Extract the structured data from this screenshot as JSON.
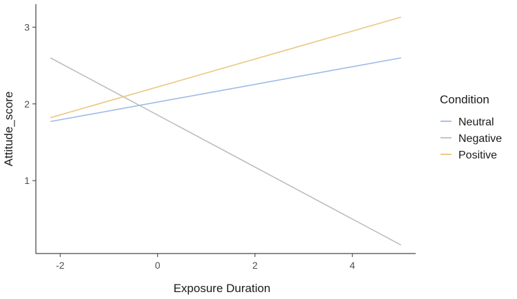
{
  "chart_data": {
    "type": "line",
    "xlabel": "Exposure Duration",
    "ylabel": "Attitude_score",
    "xlim": [
      -2.5,
      5.3
    ],
    "ylim": [
      0.05,
      3.3
    ],
    "x_ticks": [
      -2,
      0,
      2,
      4
    ],
    "y_ticks": [
      1,
      2,
      3
    ],
    "grid": false,
    "legend": {
      "title": "Condition",
      "placement": "right"
    },
    "series": [
      {
        "name": "Neutral",
        "color": "#9DBAE6",
        "x": [
          -2.2,
          5
        ],
        "y": [
          1.77,
          2.6
        ]
      },
      {
        "name": "Negative",
        "color": "#BDBDBD",
        "x": [
          -2.2,
          5
        ],
        "y": [
          2.6,
          0.16
        ]
      },
      {
        "name": "Positive",
        "color": "#E9C77F",
        "x": [
          -2.2,
          5
        ],
        "y": [
          1.82,
          3.13
        ]
      }
    ]
  }
}
